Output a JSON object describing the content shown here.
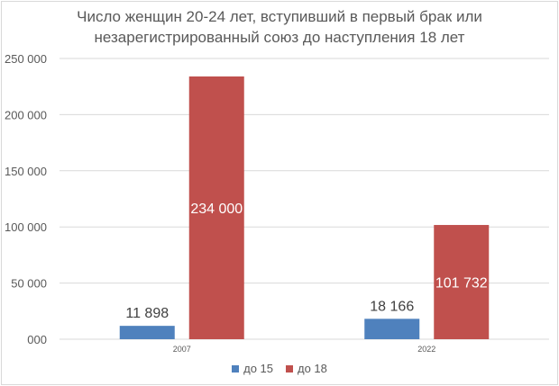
{
  "chart_data": {
    "type": "bar",
    "title_line1": "Число женщин 20-24 лет, вступивший в первый брак или",
    "title_line2": "незарегистрированный союз до наступления 18 лет",
    "categories": [
      "2007",
      "2022"
    ],
    "series": [
      {
        "name": "до 15",
        "color": "#4f81bd",
        "values": [
          11898,
          18166
        ],
        "labels": [
          "11 898",
          "18 166"
        ],
        "label_position": "outside-end"
      },
      {
        "name": "до 18",
        "color": "#c0504d",
        "values": [
          234000,
          101732
        ],
        "labels": [
          "234 000",
          "101 732"
        ],
        "label_position": "center"
      }
    ],
    "ylim": [
      0,
      250000
    ],
    "yticks": [
      0,
      50000,
      100000,
      150000,
      200000,
      250000
    ],
    "ytick_labels": [
      "000",
      "50 000",
      "100 000",
      "150 000",
      "200 000",
      "250 000"
    ],
    "grid": true,
    "legend_position": "bottom"
  }
}
